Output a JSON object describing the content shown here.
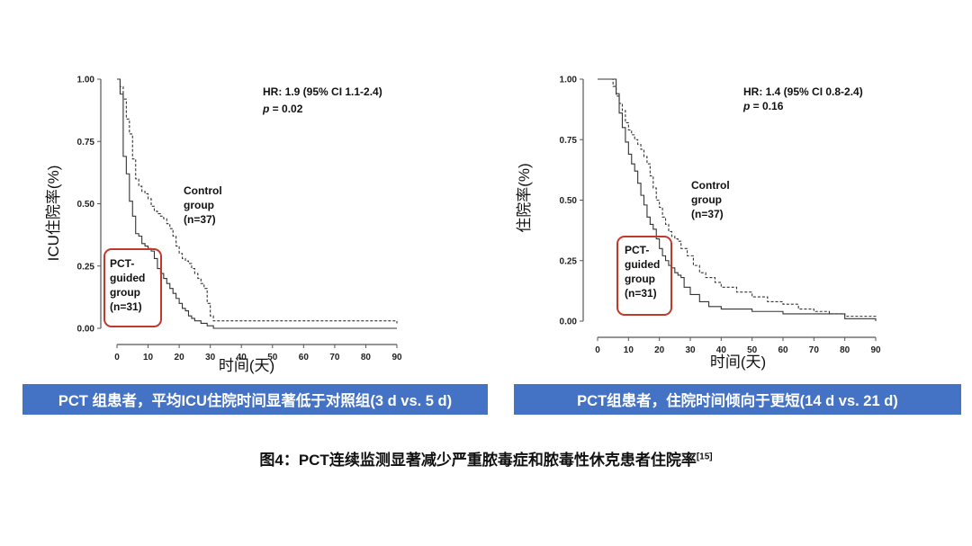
{
  "chart_data": [
    {
      "type": "line",
      "ylabel": "ICU住院率(%)",
      "xlabel": "时间(天)",
      "xlim": [
        0,
        90
      ],
      "ylim": [
        0,
        1
      ],
      "x_ticks": [
        "0",
        "10",
        "20",
        "30",
        "40",
        "50",
        "60",
        "70",
        "80",
        "90"
      ],
      "y_ticks": [
        "0.00",
        "0.25",
        "0.50",
        "0.75",
        "1.00"
      ],
      "stats_line1": "HR: 1.9 (95% CI 1.1-2.4)",
      "stats_p_label": "p",
      "stats_p_value": " = 0.02",
      "series": [
        {
          "name": "PCT-guided group (n=31)",
          "label_lines": [
            "PCT-",
            "guided",
            "group",
            "(n=31)"
          ],
          "style": "solid",
          "x": [
            0,
            1,
            2,
            3,
            4,
            5,
            6,
            7,
            8,
            9,
            10,
            11,
            12,
            13,
            14,
            15,
            16,
            17,
            18,
            19,
            20,
            21,
            22,
            23,
            24,
            25,
            26,
            27,
            28,
            29,
            30,
            31,
            90
          ],
          "y": [
            1.0,
            0.94,
            0.69,
            0.62,
            0.51,
            0.45,
            0.38,
            0.37,
            0.34,
            0.33,
            0.32,
            0.31,
            0.28,
            0.24,
            0.22,
            0.2,
            0.18,
            0.16,
            0.14,
            0.12,
            0.1,
            0.08,
            0.07,
            0.05,
            0.04,
            0.03,
            0.03,
            0.02,
            0.02,
            0.01,
            0.01,
            0.0,
            0.0
          ]
        },
        {
          "name": "Control group (n=37)",
          "label_lines": [
            "Control",
            "group",
            "(n=37)"
          ],
          "style": "dashed",
          "x": [
            0,
            1,
            2,
            3,
            4,
            5,
            6,
            7,
            8,
            9,
            10,
            11,
            12,
            13,
            14,
            15,
            16,
            17,
            18,
            19,
            20,
            21,
            22,
            23,
            24,
            25,
            26,
            27,
            28,
            29,
            30,
            31,
            33,
            90
          ],
          "y": [
            1.0,
            0.97,
            0.92,
            0.84,
            0.78,
            0.68,
            0.6,
            0.57,
            0.55,
            0.54,
            0.52,
            0.49,
            0.47,
            0.46,
            0.45,
            0.44,
            0.42,
            0.4,
            0.37,
            0.33,
            0.3,
            0.28,
            0.27,
            0.26,
            0.24,
            0.22,
            0.2,
            0.18,
            0.16,
            0.1,
            0.05,
            0.03,
            0.03,
            0.02
          ]
        }
      ]
    },
    {
      "type": "line",
      "ylabel": "住院率(%)",
      "xlabel": "时间(天)",
      "xlim": [
        0,
        90
      ],
      "ylim": [
        0,
        1
      ],
      "x_ticks": [
        "0",
        "10",
        "20",
        "30",
        "40",
        "50",
        "60",
        "70",
        "80",
        "90"
      ],
      "y_ticks": [
        "0.00",
        "0.25",
        "0.50",
        "0.75",
        "1.00"
      ],
      "stats_line1": "HR: 1.4 (95% CI 0.8-2.4)",
      "stats_p_label": "p",
      "stats_p_value": " = 0.16",
      "series": [
        {
          "name": "PCT-guided group (n=31)",
          "label_lines": [
            "PCT-",
            "guided",
            "group",
            "(n=31)"
          ],
          "style": "solid",
          "x": [
            0,
            4,
            6,
            7,
            8,
            9,
            10,
            11,
            12,
            13,
            14,
            15,
            16,
            17,
            18,
            19,
            20,
            21,
            22,
            23,
            24,
            25,
            26,
            27,
            28,
            30,
            33,
            36,
            40,
            45,
            50,
            55,
            60,
            80,
            90
          ],
          "y": [
            1.0,
            1.0,
            0.94,
            0.86,
            0.8,
            0.74,
            0.69,
            0.65,
            0.62,
            0.57,
            0.52,
            0.48,
            0.43,
            0.4,
            0.38,
            0.34,
            0.3,
            0.27,
            0.25,
            0.23,
            0.22,
            0.2,
            0.19,
            0.18,
            0.14,
            0.11,
            0.08,
            0.06,
            0.05,
            0.05,
            0.04,
            0.04,
            0.03,
            0.01,
            0.0
          ]
        },
        {
          "name": "Control group (n=37)",
          "label_lines": [
            "Control",
            "group",
            "(n=37)"
          ],
          "style": "dashed",
          "x": [
            0,
            4,
            5,
            6,
            7,
            8,
            9,
            10,
            11,
            12,
            13,
            14,
            15,
            16,
            17,
            18,
            19,
            20,
            21,
            22,
            23,
            24,
            25,
            26,
            27,
            29,
            31,
            33,
            35,
            38,
            40,
            45,
            50,
            55,
            60,
            65,
            70,
            75,
            80,
            90
          ],
          "y": [
            1.0,
            1.0,
            0.97,
            0.93,
            0.9,
            0.87,
            0.82,
            0.79,
            0.77,
            0.75,
            0.73,
            0.71,
            0.68,
            0.65,
            0.6,
            0.55,
            0.5,
            0.47,
            0.43,
            0.4,
            0.37,
            0.35,
            0.34,
            0.33,
            0.3,
            0.27,
            0.23,
            0.2,
            0.18,
            0.16,
            0.14,
            0.12,
            0.1,
            0.08,
            0.07,
            0.05,
            0.04,
            0.03,
            0.02,
            0.01
          ]
        }
      ]
    }
  ],
  "banners": [
    "PCT 组患者，平均ICU住院时间显著低于对照组(3 d vs. 5 d)",
    "PCT组患者，住院时间倾向于更短(14 d vs. 21 d)"
  ],
  "caption": {
    "text": "图4：PCT连续监测显著减少严重脓毒症和脓毒性休克患者住院率",
    "ref": "[15]"
  },
  "colors": {
    "banner_bg": "#4472c4",
    "highlight_box": "#c0392b",
    "line": "#333333"
  }
}
